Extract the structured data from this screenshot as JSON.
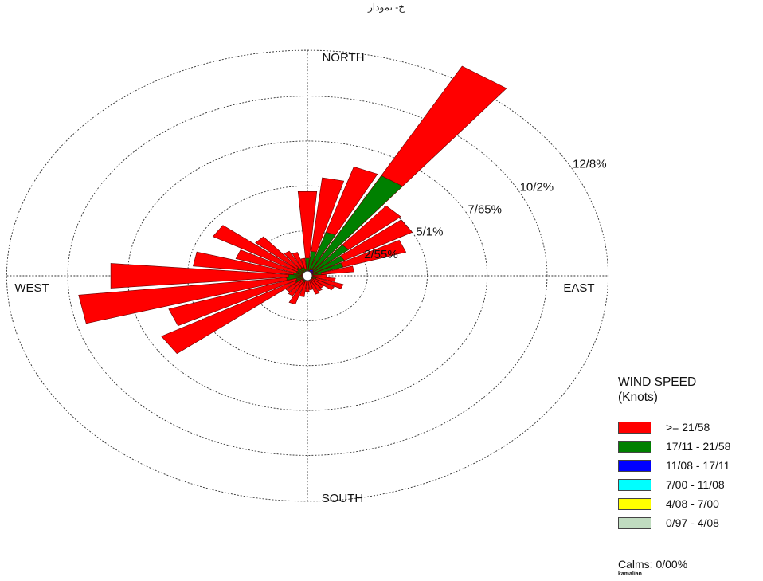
{
  "page_header": "خ- نمودار",
  "chart_data": {
    "type": "wind_rose",
    "directions": [
      "NORTH",
      "EAST",
      "SOUTH",
      "WEST"
    ],
    "ring_labels": [
      "2/55%",
      "5/1%",
      "7/65%",
      "10/2%",
      "12/8%"
    ],
    "ring_values": [
      2.55,
      5.1,
      7.65,
      10.2,
      12.8
    ],
    "legend_title": "WIND SPEED",
    "legend_units": "(Knots)",
    "bins": [
      {
        "label": ">= 21/58",
        "color": "#ff0000"
      },
      {
        "label": "17/11 - 21/58",
        "color": "#008000"
      },
      {
        "label": "11/08 - 17/11",
        "color": "#0000ff"
      },
      {
        "label": "7/00 - 11/08",
        "color": "#00ffff"
      },
      {
        "label": "4/08 - 7/00",
        "color": "#ffff00"
      },
      {
        "label": "0/97 - 4/08",
        "color": "#c0dcc0"
      }
    ],
    "calms": "Calms: 0/00%",
    "credit": "kamalian",
    "petals": [
      {
        "dir": 0,
        "total": 4.8,
        "green": 1.0,
        "blue": 0.25
      },
      {
        "dir": 11.25,
        "total": 5.6,
        "green": 1.4,
        "blue": 0.3
      },
      {
        "dir": 22.5,
        "total": 6.5,
        "green": 2.6,
        "blue": 0.35
      },
      {
        "dir": 33.75,
        "total": 13.6,
        "green": 6.5,
        "blue": 0.4
      },
      {
        "dir": 45,
        "total": 5.2,
        "green": 2.3,
        "blue": 0.35
      },
      {
        "dir": 56.25,
        "total": 5.1,
        "green": 1.8,
        "blue": 0.3
      },
      {
        "dir": 67.5,
        "total": 4.4,
        "green": 1.6,
        "blue": 0.25
      },
      {
        "dir": 78.75,
        "total": 2.0,
        "green": 0.6,
        "blue": 0.2
      },
      {
        "dir": 90,
        "total": 0.8,
        "green": 0.2,
        "blue": 0.1
      },
      {
        "dir": 101.25,
        "total": 1.2,
        "green": 0.3,
        "blue": 0.1
      },
      {
        "dir": 112.5,
        "total": 1.6,
        "green": 0.4,
        "blue": 0.1
      },
      {
        "dir": 123.75,
        "total": 1.3,
        "green": 0.3,
        "blue": 0.1
      },
      {
        "dir": 135,
        "total": 0.9,
        "green": 0.2,
        "blue": 0.1
      },
      {
        "dir": 146.25,
        "total": 1.0,
        "green": 0.2,
        "blue": 0.1
      },
      {
        "dir": 157.5,
        "total": 1.1,
        "green": 0.2,
        "blue": 0.1
      },
      {
        "dir": 168.75,
        "total": 0.8,
        "green": 0.2,
        "blue": 0.1
      },
      {
        "dir": 180,
        "total": 0.9,
        "green": 0.2,
        "blue": 0.1
      },
      {
        "dir": 191.25,
        "total": 1.2,
        "green": 0.3,
        "blue": 0.1
      },
      {
        "dir": 202.5,
        "total": 1.7,
        "green": 0.4,
        "blue": 0.1
      },
      {
        "dir": 213.75,
        "total": 1.3,
        "green": 0.3,
        "blue": 0.1
      },
      {
        "dir": 225,
        "total": 1.2,
        "green": 0.3,
        "blue": 0.1
      },
      {
        "dir": 236.25,
        "total": 7.1,
        "green": 0.6,
        "blue": 0.15
      },
      {
        "dir": 247.5,
        "total": 6.2,
        "green": 0.5,
        "blue": 0.15
      },
      {
        "dir": 258.75,
        "total": 9.8,
        "green": 0.9,
        "blue": 0.2
      },
      {
        "dir": 270,
        "total": 8.4,
        "green": 0.8,
        "blue": 0.2
      },
      {
        "dir": 281.25,
        "total": 4.9,
        "green": 0.6,
        "blue": 0.2
      },
      {
        "dir": 292.5,
        "total": 3.2,
        "green": 0.5,
        "blue": 0.15
      },
      {
        "dir": 303.75,
        "total": 4.6,
        "green": 0.5,
        "blue": 0.15
      },
      {
        "dir": 315,
        "total": 2.9,
        "green": 0.6,
        "blue": 0.2
      },
      {
        "dir": 326.25,
        "total": 1.6,
        "green": 0.5,
        "blue": 0.2
      },
      {
        "dir": 337.5,
        "total": 1.4,
        "green": 0.5,
        "blue": 0.2
      },
      {
        "dir": 348.75,
        "total": 1.0,
        "green": 0.4,
        "blue": 0.2
      }
    ]
  }
}
